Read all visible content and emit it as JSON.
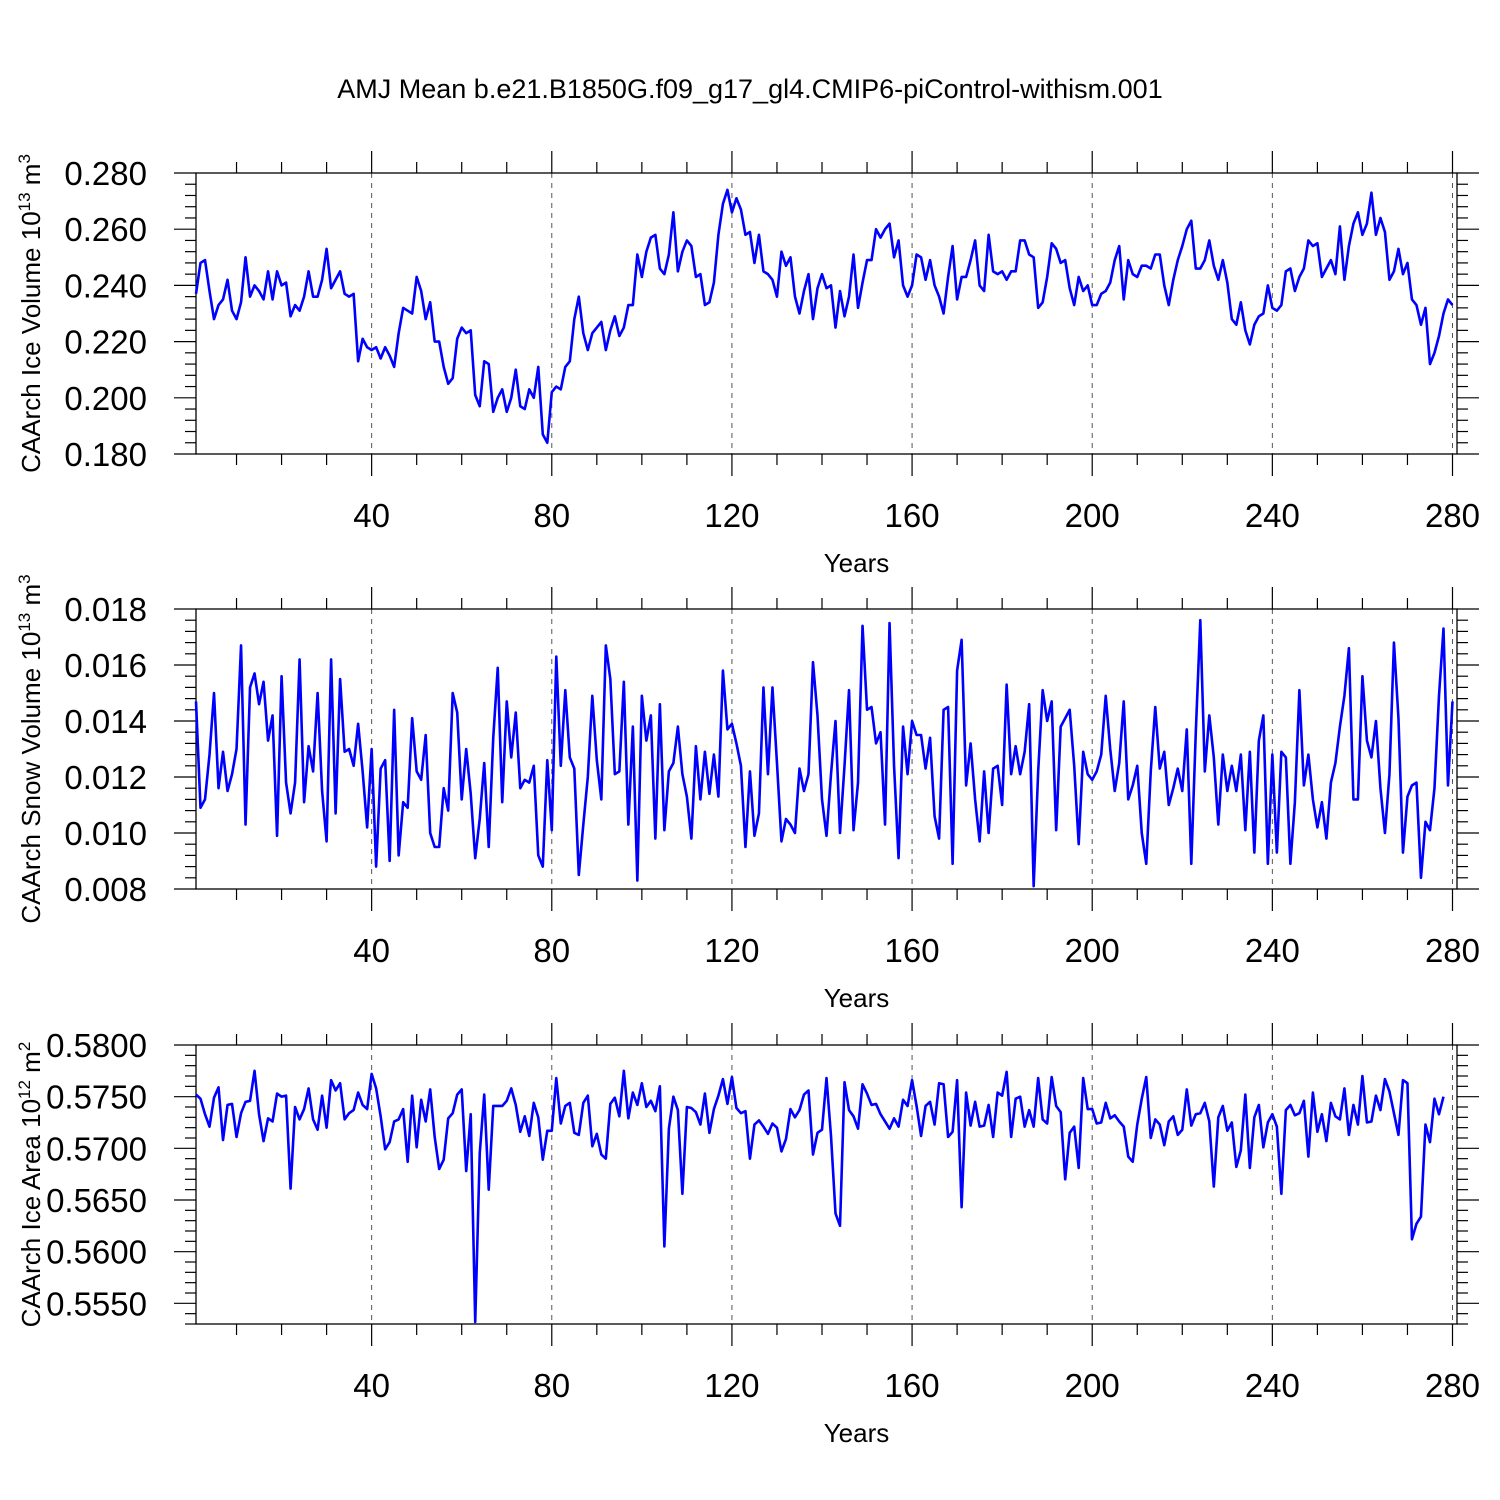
{
  "title": "AMJ Mean b.e21.B1850G.f09_g17_gl4.CMIP6-piControl-withism.001",
  "chart_data": [
    {
      "type": "line",
      "ylabel": "CAArch Ice Volume 10",
      "ylabel_exp": "13",
      "ylabel_unit": " m",
      "ylabel_unit_exp": "3",
      "xlabel": "Years",
      "xlim": [
        1,
        281
      ],
      "ylim": [
        0.18,
        0.28
      ],
      "xticks": [
        "40",
        "80",
        "120",
        "160",
        "200",
        "240",
        "280"
      ],
      "yticks": [
        "0.280",
        "0.260",
        "0.240",
        "0.220",
        "0.200",
        "0.180"
      ],
      "line_color": "#0000ff",
      "grid": "dashed vertical at major x ticks",
      "series": [
        {
          "values": [
            0.237,
            0.248,
            0.249,
            0.238,
            0.228,
            0.233,
            0.235,
            0.242,
            0.231,
            0.228,
            0.234,
            0.25,
            0.236,
            0.24,
            0.238,
            0.235,
            0.245,
            0.235,
            0.245,
            0.24,
            0.241,
            0.229,
            0.233,
            0.231,
            0.236,
            0.245,
            0.236,
            0.236,
            0.242,
            0.253,
            0.239,
            0.242,
            0.245,
            0.237,
            0.236,
            0.237,
            0.213,
            0.221,
            0.218,
            0.217,
            0.218,
            0.214,
            0.218,
            0.215,
            0.211,
            0.223,
            0.232,
            0.231,
            0.23,
            0.243,
            0.238,
            0.228,
            0.234,
            0.22,
            0.22,
            0.211,
            0.205,
            0.207,
            0.221,
            0.225,
            0.223,
            0.224,
            0.201,
            0.197,
            0.213,
            0.212,
            0.195,
            0.2,
            0.203,
            0.195,
            0.2,
            0.21,
            0.197,
            0.196,
            0.203,
            0.2,
            0.211,
            0.187,
            0.184,
            0.202,
            0.204,
            0.203,
            0.211,
            0.213,
            0.228,
            0.236,
            0.223,
            0.217,
            0.223,
            0.225,
            0.227,
            0.217,
            0.224,
            0.229,
            0.222,
            0.225,
            0.233,
            0.233,
            0.251,
            0.243,
            0.252,
            0.257,
            0.258,
            0.246,
            0.244,
            0.251,
            0.266,
            0.245,
            0.252,
            0.256,
            0.254,
            0.243,
            0.244,
            0.233,
            0.234,
            0.241,
            0.258,
            0.269,
            0.274,
            0.266,
            0.271,
            0.267,
            0.258,
            0.259,
            0.248,
            0.258,
            0.245,
            0.244,
            0.242,
            0.236,
            0.252,
            0.247,
            0.25,
            0.236,
            0.23,
            0.238,
            0.244,
            0.228,
            0.239,
            0.244,
            0.239,
            0.24,
            0.225,
            0.238,
            0.229,
            0.236,
            0.251,
            0.232,
            0.241,
            0.249,
            0.249,
            0.26,
            0.257,
            0.26,
            0.262,
            0.25,
            0.256,
            0.24,
            0.236,
            0.24,
            0.251,
            0.25,
            0.242,
            0.249,
            0.24,
            0.236,
            0.23,
            0.243,
            0.254,
            0.235,
            0.243,
            0.243,
            0.249,
            0.256,
            0.24,
            0.238,
            0.258,
            0.245,
            0.244,
            0.245,
            0.242,
            0.245,
            0.245,
            0.256,
            0.256,
            0.251,
            0.25,
            0.232,
            0.234,
            0.243,
            0.255,
            0.253,
            0.248,
            0.249,
            0.239,
            0.233,
            0.243,
            0.238,
            0.24,
            0.233,
            0.233,
            0.237,
            0.238,
            0.241,
            0.249,
            0.254,
            0.235,
            0.249,
            0.244,
            0.243,
            0.247,
            0.247,
            0.246,
            0.251,
            0.251,
            0.24,
            0.233,
            0.242,
            0.249,
            0.254,
            0.26,
            0.263,
            0.246,
            0.246,
            0.249,
            0.256,
            0.247,
            0.242,
            0.249,
            0.241,
            0.228,
            0.226,
            0.234,
            0.224,
            0.219,
            0.226,
            0.229,
            0.23,
            0.24,
            0.232,
            0.231,
            0.233,
            0.245,
            0.246,
            0.238,
            0.243,
            0.246,
            0.256,
            0.254,
            0.255,
            0.243,
            0.246,
            0.249,
            0.244,
            0.261,
            0.242,
            0.254,
            0.262,
            0.266,
            0.258,
            0.262,
            0.273,
            0.258,
            0.264,
            0.259,
            0.242,
            0.245,
            0.253,
            0.244,
            0.248,
            0.235,
            0.233,
            0.226,
            0.232,
            0.212,
            0.216,
            0.222,
            0.23,
            0.235,
            0.233
          ]
        }
      ]
    },
    {
      "type": "line",
      "ylabel": "CAArch Snow Volume 10",
      "ylabel_exp": "13",
      "ylabel_unit": " m",
      "ylabel_unit_exp": "3",
      "xlabel": "Years",
      "xlim": [
        1,
        281
      ],
      "ylim": [
        0.008,
        0.018
      ],
      "xticks": [
        "40",
        "80",
        "120",
        "160",
        "200",
        "240",
        "280"
      ],
      "yticks": [
        "0.018",
        "0.016",
        "0.014",
        "0.012",
        "0.010",
        "0.008"
      ],
      "line_color": "#0000ff",
      "grid": "dashed vertical at major x ticks",
      "series": [
        {
          "values": [
            0.0147,
            0.0109,
            0.0112,
            0.0128,
            0.015,
            0.0116,
            0.0129,
            0.0115,
            0.0121,
            0.013,
            0.0167,
            0.0103,
            0.0152,
            0.0157,
            0.0146,
            0.0154,
            0.0133,
            0.0142,
            0.0099,
            0.0156,
            0.0118,
            0.0107,
            0.0118,
            0.0162,
            0.0111,
            0.0131,
            0.0122,
            0.015,
            0.0115,
            0.0097,
            0.0162,
            0.0107,
            0.0155,
            0.0129,
            0.013,
            0.0124,
            0.0139,
            0.0122,
            0.0102,
            0.013,
            0.0088,
            0.0123,
            0.0126,
            0.009,
            0.0144,
            0.0092,
            0.0111,
            0.0109,
            0.0141,
            0.0122,
            0.0119,
            0.0135,
            0.01,
            0.0095,
            0.0095,
            0.0116,
            0.0108,
            0.015,
            0.0143,
            0.0112,
            0.013,
            0.0114,
            0.0091,
            0.0105,
            0.0125,
            0.0095,
            0.0134,
            0.0159,
            0.0111,
            0.0147,
            0.0127,
            0.0143,
            0.0116,
            0.0119,
            0.0118,
            0.0124,
            0.0092,
            0.0088,
            0.0126,
            0.0101,
            0.0163,
            0.0124,
            0.0151,
            0.0127,
            0.0123,
            0.0085,
            0.0103,
            0.012,
            0.0149,
            0.0126,
            0.0112,
            0.0167,
            0.0155,
            0.0121,
            0.0122,
            0.0154,
            0.0103,
            0.0138,
            0.0083,
            0.0149,
            0.0133,
            0.0142,
            0.0098,
            0.0146,
            0.0101,
            0.0122,
            0.0125,
            0.0138,
            0.0121,
            0.0113,
            0.0098,
            0.0131,
            0.0112,
            0.0129,
            0.0114,
            0.0128,
            0.0113,
            0.0158,
            0.0137,
            0.0139,
            0.0132,
            0.0124,
            0.0095,
            0.0122,
            0.0099,
            0.0107,
            0.0152,
            0.0121,
            0.0152,
            0.0125,
            0.0097,
            0.0105,
            0.0103,
            0.01,
            0.0123,
            0.0115,
            0.0121,
            0.0161,
            0.0142,
            0.0112,
            0.0099,
            0.0121,
            0.014,
            0.01,
            0.0124,
            0.0151,
            0.0101,
            0.0118,
            0.0174,
            0.0144,
            0.0145,
            0.0132,
            0.0136,
            0.0103,
            0.0175,
            0.0124,
            0.0091,
            0.0138,
            0.0121,
            0.014,
            0.0135,
            0.0135,
            0.0123,
            0.0134,
            0.0106,
            0.0098,
            0.0144,
            0.0145,
            0.0089,
            0.0158,
            0.0169,
            0.0117,
            0.0132,
            0.0112,
            0.0097,
            0.0122,
            0.01,
            0.0123,
            0.0124,
            0.011,
            0.0153,
            0.0121,
            0.0131,
            0.0121,
            0.0129,
            0.0146,
            0.0081,
            0.0122,
            0.0151,
            0.014,
            0.0147,
            0.0101,
            0.0138,
            0.0141,
            0.0144,
            0.0124,
            0.0096,
            0.0129,
            0.0121,
            0.0119,
            0.0122,
            0.0128,
            0.0149,
            0.013,
            0.0115,
            0.0125,
            0.0147,
            0.0112,
            0.0117,
            0.0124,
            0.01,
            0.0089,
            0.0122,
            0.0145,
            0.0123,
            0.0129,
            0.011,
            0.0116,
            0.0123,
            0.0115,
            0.0137,
            0.0089,
            0.0136,
            0.0176,
            0.0122,
            0.0142,
            0.0127,
            0.0103,
            0.0128,
            0.0115,
            0.0124,
            0.0115,
            0.0128,
            0.0101,
            0.0129,
            0.0093,
            0.0133,
            0.0142,
            0.0089,
            0.0128,
            0.0093,
            0.0129,
            0.0127,
            0.0089,
            0.0111,
            0.0151,
            0.0117,
            0.0128,
            0.0112,
            0.0102,
            0.0111,
            0.0098,
            0.0118,
            0.0125,
            0.0138,
            0.0149,
            0.0166,
            0.0112,
            0.0112,
            0.0156,
            0.0133,
            0.0127,
            0.014,
            0.0116,
            0.01,
            0.0121,
            0.0168,
            0.0141,
            0.0093,
            0.0113,
            0.0117,
            0.0118,
            0.0084,
            0.0104,
            0.0101,
            0.0116,
            0.0149,
            0.0173,
            0.0117,
            0.0147
          ]
        }
      ]
    },
    {
      "type": "line",
      "ylabel": "CAArch Ice Area 10",
      "ylabel_exp": "12",
      "ylabel_unit": " m",
      "ylabel_unit_exp": "2",
      "xlabel": "Years",
      "xlim": [
        1,
        281
      ],
      "ylim": [
        0.553,
        0.58
      ],
      "xticks": [
        "40",
        "80",
        "120",
        "160",
        "200",
        "240",
        "280"
      ],
      "yticks": [
        "0.5800",
        "0.5750",
        "0.5700",
        "0.5650",
        "0.5600",
        "0.5550"
      ],
      "line_color": "#0000ff",
      "grid": "dashed vertical at major x ticks",
      "series": [
        {
          "values": [
            0.5752,
            0.5748,
            0.5733,
            0.5721,
            0.5749,
            0.5759,
            0.5708,
            0.5742,
            0.5743,
            0.5711,
            0.5734,
            0.5745,
            0.5746,
            0.5775,
            0.5733,
            0.5707,
            0.5729,
            0.5726,
            0.5753,
            0.575,
            0.5751,
            0.5661,
            0.574,
            0.5728,
            0.5738,
            0.5758,
            0.5728,
            0.5718,
            0.5751,
            0.572,
            0.5766,
            0.5756,
            0.5763,
            0.5728,
            0.5734,
            0.5737,
            0.5754,
            0.5742,
            0.5738,
            0.5772,
            0.5758,
            0.5731,
            0.5699,
            0.5706,
            0.5726,
            0.5728,
            0.5738,
            0.5687,
            0.5751,
            0.5701,
            0.5747,
            0.5726,
            0.5757,
            0.5711,
            0.568,
            0.5689,
            0.5729,
            0.5734,
            0.5752,
            0.5757,
            0.5678,
            0.5733,
            0.5532,
            0.5695,
            0.5752,
            0.566,
            0.5741,
            0.5741,
            0.5741,
            0.5746,
            0.5758,
            0.5742,
            0.5716,
            0.5731,
            0.5712,
            0.5744,
            0.573,
            0.5689,
            0.5717,
            0.5717,
            0.5768,
            0.5724,
            0.5741,
            0.5744,
            0.5715,
            0.5713,
            0.5744,
            0.5751,
            0.5702,
            0.5714,
            0.5694,
            0.569,
            0.5743,
            0.5749,
            0.5731,
            0.5775,
            0.5729,
            0.5754,
            0.5742,
            0.5763,
            0.574,
            0.5746,
            0.5736,
            0.576,
            0.5605,
            0.5719,
            0.575,
            0.5737,
            0.5656,
            0.574,
            0.5739,
            0.5735,
            0.5723,
            0.5753,
            0.5715,
            0.5738,
            0.5751,
            0.5767,
            0.5743,
            0.5769,
            0.5739,
            0.5734,
            0.5736,
            0.569,
            0.5723,
            0.5727,
            0.5721,
            0.5714,
            0.5724,
            0.572,
            0.5697,
            0.5709,
            0.5738,
            0.573,
            0.5737,
            0.5752,
            0.5756,
            0.5694,
            0.5715,
            0.5718,
            0.5768,
            0.5712,
            0.5637,
            0.5625,
            0.5764,
            0.5737,
            0.5731,
            0.5719,
            0.5762,
            0.5753,
            0.5742,
            0.5743,
            0.5733,
            0.5726,
            0.5719,
            0.5729,
            0.5721,
            0.5747,
            0.5741,
            0.5766,
            0.5741,
            0.5712,
            0.5741,
            0.5745,
            0.5723,
            0.5763,
            0.5762,
            0.5711,
            0.5716,
            0.5766,
            0.5643,
            0.5754,
            0.5722,
            0.5745,
            0.5721,
            0.5722,
            0.5742,
            0.5711,
            0.5754,
            0.5751,
            0.5774,
            0.5711,
            0.5748,
            0.575,
            0.5721,
            0.5737,
            0.5721,
            0.5768,
            0.5728,
            0.5724,
            0.5769,
            0.5741,
            0.5735,
            0.567,
            0.5715,
            0.5721,
            0.5681,
            0.5768,
            0.5738,
            0.5738,
            0.5724,
            0.5725,
            0.5744,
            0.5729,
            0.5732,
            0.5726,
            0.5721,
            0.5692,
            0.5687,
            0.5723,
            0.5748,
            0.5769,
            0.571,
            0.5728,
            0.5723,
            0.5703,
            0.5726,
            0.5731,
            0.5713,
            0.5718,
            0.5757,
            0.5722,
            0.5733,
            0.5734,
            0.5744,
            0.5726,
            0.5663,
            0.573,
            0.5741,
            0.5717,
            0.5725,
            0.5682,
            0.5698,
            0.5752,
            0.5681,
            0.573,
            0.5742,
            0.5701,
            0.5725,
            0.5733,
            0.5721,
            0.5656,
            0.5737,
            0.5742,
            0.5732,
            0.5734,
            0.5746,
            0.5692,
            0.5754,
            0.5716,
            0.5733,
            0.5707,
            0.5744,
            0.5731,
            0.5728,
            0.5758,
            0.5713,
            0.5742,
            0.5723,
            0.577,
            0.5725,
            0.5726,
            0.5751,
            0.5737,
            0.5767,
            0.5755,
            0.5734,
            0.5713,
            0.5766,
            0.5763,
            0.5612,
            0.5627,
            0.5634,
            0.5723,
            0.5706,
            0.5748,
            0.5733,
            0.575
          ]
        }
      ]
    }
  ]
}
